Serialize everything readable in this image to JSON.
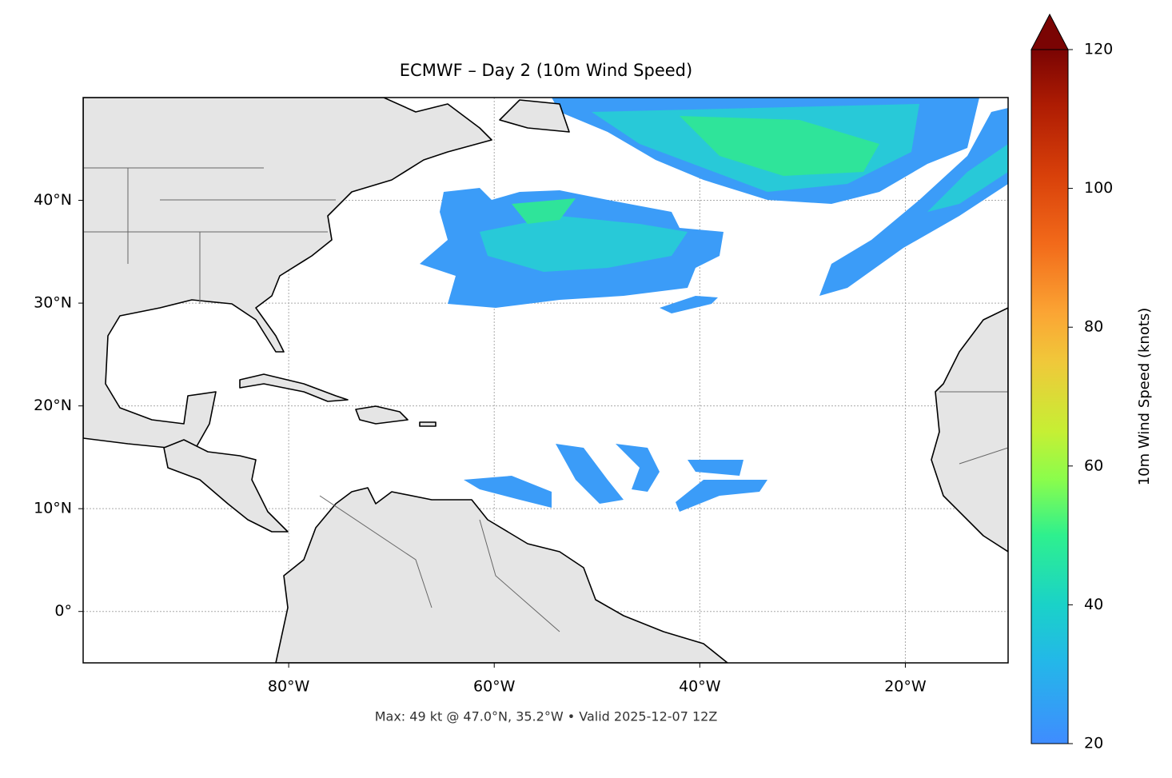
{
  "title": "ECMWF – Day 2 (10m Wind Speed)",
  "footer": "Max: 49 kt @ 47.0°N, 35.2°W • Valid 2025-12-07 12Z",
  "lonlim": [
    -100,
    -10
  ],
  "latlim": [
    -5,
    50
  ],
  "lon_ticks": [
    {
      "value": -80,
      "label": "80°W"
    },
    {
      "value": -60,
      "label": "60°W"
    },
    {
      "value": -40,
      "label": "40°W"
    },
    {
      "value": -20,
      "label": "20°W"
    }
  ],
  "lat_ticks": [
    {
      "value": 0,
      "label": "0°"
    },
    {
      "value": 10,
      "label": "10°N"
    },
    {
      "value": 20,
      "label": "20°N"
    },
    {
      "value": 30,
      "label": "30°N"
    },
    {
      "value": 40,
      "label": "40°N"
    }
  ],
  "colorbar": {
    "label": "10m Wind Speed (knots)",
    "lim": [
      20,
      120
    ],
    "ticks": [
      20,
      40,
      60,
      80,
      100,
      120
    ]
  }
}
